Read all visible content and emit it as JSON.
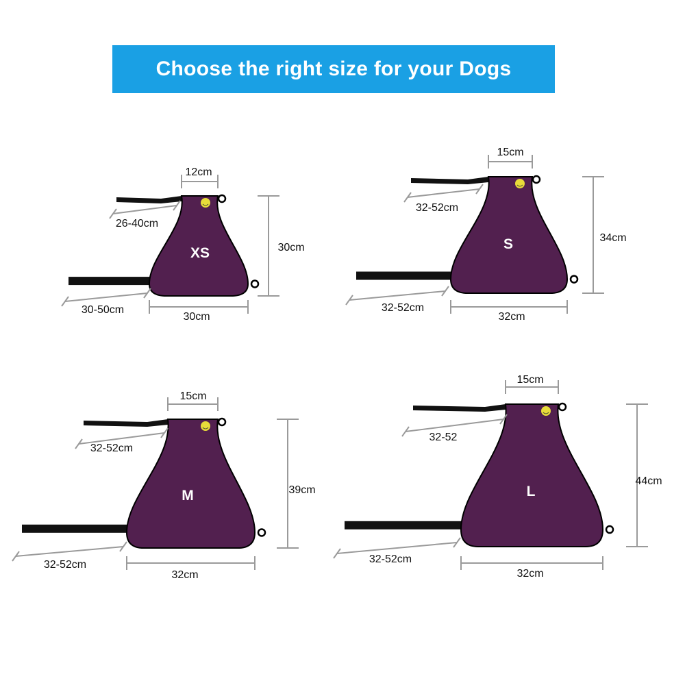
{
  "title": "Choose the right size for your Dogs",
  "colors": {
    "banner": "#1aa0e4",
    "body": "#52204f",
    "strap": "#111111",
    "dimension_line": "#9a9a9a",
    "smiley": "#e8dc3a"
  },
  "sizes": [
    {
      "size": "XS",
      "neck_width": "12cm",
      "height": "30cm",
      "bottom_width": "30cm",
      "top_strap": "26-40cm",
      "bottom_strap": "30-50cm"
    },
    {
      "size": "S",
      "neck_width": "15cm",
      "height": "34cm",
      "bottom_width": "32cm",
      "top_strap": "32-52cm",
      "bottom_strap": "32-52cm"
    },
    {
      "size": "M",
      "neck_width": "15cm",
      "height": "39cm",
      "bottom_width": "32cm",
      "top_strap": "32-52cm",
      "bottom_strap": "32-52cm"
    },
    {
      "size": "L",
      "neck_width": "15cm",
      "height": "44cm",
      "bottom_width": "32cm",
      "top_strap": "32-52",
      "bottom_strap": "32-52cm"
    }
  ]
}
